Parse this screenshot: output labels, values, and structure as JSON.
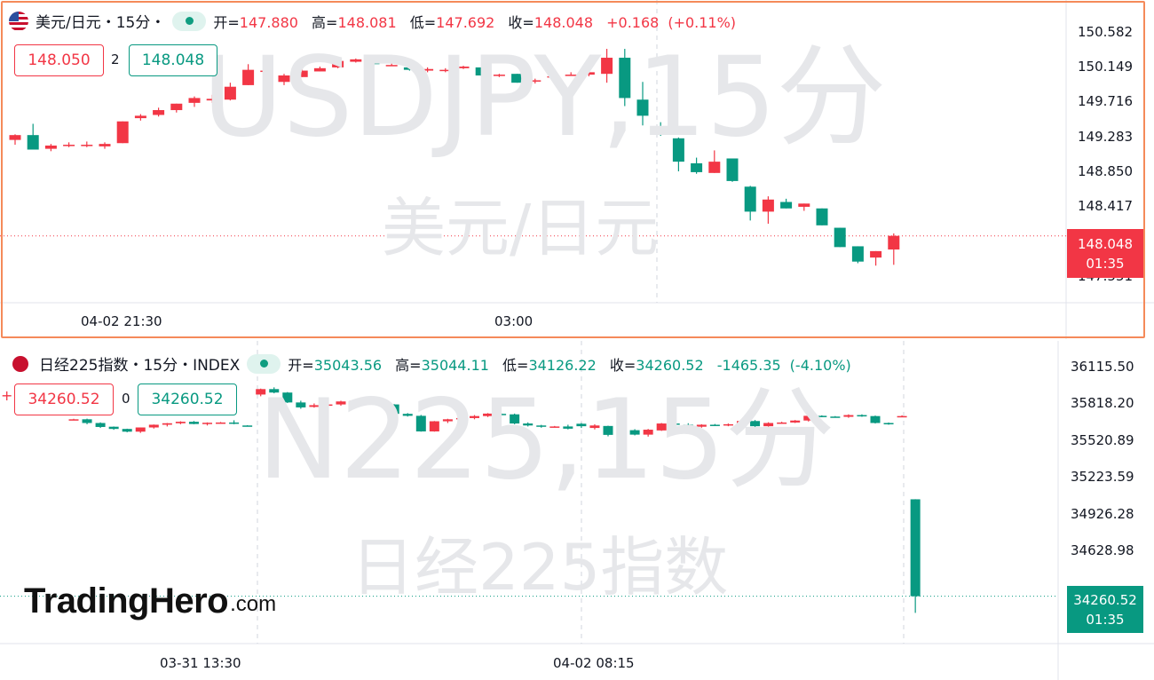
{
  "branding": {
    "logo_main": "TradingHero",
    "logo_suffix": ".com"
  },
  "colors": {
    "up": "#f23645",
    "down": "#089981",
    "frame": "#f58a5a",
    "watermark": "#e6e7ea"
  },
  "charts": [
    {
      "id": "usdjpy",
      "title": "美元/日元・15分・",
      "flag_icon": "us-flag-icon",
      "legend": {
        "open_label": "开=",
        "open": "147.880",
        "high_label": "高=",
        "high": "148.081",
        "low_label": "低=",
        "low": "147.692",
        "close_label": "收=",
        "close": "148.048",
        "change": "+0.168",
        "change_pct": "(+0.11%)"
      },
      "bid": "148.050",
      "spread": "2",
      "ask": "148.048",
      "watermark_main": "USDJPY,15分",
      "watermark_sub": "美元/日元",
      "price_ticks": [
        "150.582",
        "150.149",
        "149.716",
        "149.283",
        "148.850",
        "148.417",
        "147.551"
      ],
      "current_price": "148.048",
      "countdown": "01:35",
      "time_labels": [
        "04-02 21:30",
        "03:00"
      ]
    },
    {
      "id": "n225",
      "title": "日经225指数・15分・INDEX",
      "flag_icon": "japan-flag-icon",
      "legend": {
        "open_label": "开=",
        "open": "35043.56",
        "high_label": "高=",
        "high": "35044.11",
        "low_label": "低=",
        "low": "34126.22",
        "close_label": "收=",
        "close": "34260.52",
        "change": "-1465.35",
        "change_pct": "(-4.10%)"
      },
      "bid": "34260.52",
      "spread": "0",
      "ask": "34260.52",
      "watermark_main": "N225,15分",
      "watermark_sub": "日经225指数",
      "price_ticks": [
        "36115.50",
        "35818.20",
        "35520.89",
        "35223.59",
        "34926.28",
        "34628.98"
      ],
      "current_price": "34260.52",
      "countdown": "01:35",
      "time_labels": [
        "03-31 13:30",
        "04-02 08:15"
      ]
    }
  ],
  "chart_data": [
    {
      "type": "candlestick",
      "title": "USDJPY,15分",
      "ylim": [
        147.44,
        150.69
      ],
      "ticks": [
        150.582,
        150.149,
        149.716,
        149.283,
        148.85,
        148.417,
        147.551
      ],
      "last": 148.048,
      "candles": [
        [
          149.24,
          149.31,
          149.18,
          149.3
        ],
        [
          149.3,
          149.44,
          149.12,
          149.12
        ],
        [
          149.13,
          149.19,
          149.1,
          149.17
        ],
        [
          149.17,
          149.21,
          149.15,
          149.18
        ],
        [
          149.17,
          149.22,
          149.15,
          149.18
        ],
        [
          149.16,
          149.21,
          149.13,
          149.19
        ],
        [
          149.2,
          149.47,
          149.2,
          149.47
        ],
        [
          149.51,
          149.56,
          149.48,
          149.54
        ],
        [
          149.55,
          149.64,
          149.53,
          149.61
        ],
        [
          149.61,
          149.69,
          149.58,
          149.69
        ],
        [
          149.7,
          149.78,
          149.65,
          149.76
        ],
        [
          149.73,
          149.8,
          149.7,
          149.75
        ],
        [
          149.74,
          149.95,
          149.73,
          149.9
        ],
        [
          149.92,
          150.18,
          149.92,
          150.11
        ],
        [
          150.1,
          150.16,
          150.03,
          150.1
        ],
        [
          149.96,
          150.06,
          149.92,
          150.04
        ],
        [
          150.02,
          150.14,
          150.02,
          150.1
        ],
        [
          150.09,
          150.15,
          150.09,
          150.13
        ],
        [
          150.14,
          150.22,
          150.13,
          150.22
        ],
        [
          150.21,
          150.25,
          150.2,
          150.24
        ],
        [
          150.21,
          150.23,
          150.16,
          150.18
        ],
        [
          150.17,
          150.2,
          150.16,
          150.17
        ],
        [
          150.14,
          150.16,
          150.1,
          150.11
        ],
        [
          150.1,
          150.14,
          150.08,
          150.12
        ],
        [
          150.1,
          150.13,
          150.08,
          150.11
        ],
        [
          150.13,
          150.16,
          150.12,
          150.15
        ],
        [
          150.14,
          150.14,
          150.03,
          150.04
        ],
        [
          150.04,
          150.06,
          150.02,
          150.05
        ],
        [
          150.06,
          150.06,
          149.95,
          149.95
        ],
        [
          149.97,
          150.0,
          149.94,
          149.98
        ],
        [
          150.02,
          150.05,
          149.98,
          150.03
        ],
        [
          150.05,
          150.08,
          150.04,
          150.05
        ],
        [
          150.05,
          150.09,
          150.03,
          150.08
        ],
        [
          150.06,
          150.37,
          149.95,
          150.26
        ],
        [
          150.26,
          150.37,
          149.66,
          149.76
        ],
        [
          149.74,
          149.96,
          149.42,
          149.54
        ],
        [
          149.41,
          149.46,
          149.29,
          149.32
        ],
        [
          149.26,
          149.27,
          148.85,
          148.97
        ],
        [
          148.95,
          149.02,
          148.82,
          148.84
        ],
        [
          148.83,
          149.11,
          148.83,
          148.97
        ],
        [
          149.01,
          149.01,
          148.72,
          148.73
        ],
        [
          148.66,
          148.67,
          148.24,
          148.35
        ],
        [
          148.35,
          148.54,
          148.2,
          148.5
        ],
        [
          148.47,
          148.51,
          148.39,
          148.39
        ],
        [
          148.41,
          148.45,
          148.36,
          148.45
        ],
        [
          148.39,
          148.39,
          148.18,
          148.18
        ],
        [
          148.15,
          148.15,
          147.91,
          147.91
        ],
        [
          147.92,
          147.92,
          147.71,
          147.73
        ],
        [
          147.78,
          147.86,
          147.68,
          147.86
        ],
        [
          147.88,
          148.08,
          147.69,
          148.05
        ]
      ]
    },
    {
      "type": "candlestick",
      "title": "N225,15分",
      "ylim": [
        34100,
        36180
      ],
      "ticks": [
        36115.5,
        35818.2,
        35520.89,
        35223.59,
        34926.28,
        34628.98
      ],
      "last": 34260.52,
      "candles": [
        [
          35686,
          35694,
          35682,
          35690
        ],
        [
          35690,
          35695,
          35650,
          35660
        ],
        [
          35660,
          35665,
          35620,
          35628
        ],
        [
          35630,
          35632,
          35605,
          35612
        ],
        [
          35612,
          35614,
          35585,
          35590
        ],
        [
          35590,
          35624,
          35580,
          35624
        ],
        [
          35624,
          35648,
          35615,
          35646
        ],
        [
          35646,
          35660,
          35632,
          35658
        ],
        [
          35658,
          35674,
          35650,
          35670
        ],
        [
          35670,
          35676,
          35650,
          35652
        ],
        [
          35652,
          35665,
          35640,
          35662
        ],
        [
          35662,
          35668,
          35655,
          35664
        ],
        [
          35664,
          35682,
          35650,
          35660
        ],
        [
          35640,
          35642,
          35636,
          35638
        ],
        [
          35890,
          35938,
          35876,
          35934
        ],
        [
          35934,
          35948,
          35900,
          35906
        ],
        [
          35906,
          35910,
          35822,
          35826
        ],
        [
          35826,
          35840,
          35775,
          35786
        ],
        [
          35790,
          35818,
          35784,
          35804
        ],
        [
          35804,
          35825,
          35786,
          35810
        ],
        [
          35810,
          35840,
          35800,
          35834
        ],
        [
          35834,
          35846,
          35826,
          35840
        ],
        [
          35840,
          35845,
          35815,
          35818
        ],
        [
          35818,
          35822,
          35808,
          35810
        ],
        [
          35810,
          35812,
          35730,
          35734
        ],
        [
          35734,
          35740,
          35712,
          35718
        ],
        [
          35718,
          35725,
          35590,
          35592
        ],
        [
          35592,
          35676,
          35590,
          35674
        ],
        [
          35674,
          35694,
          35660,
          35690
        ],
        [
          35690,
          35712,
          35680,
          35700
        ],
        [
          35700,
          35724,
          35690,
          35716
        ],
        [
          35716,
          35740,
          35708,
          35736
        ],
        [
          35734,
          35740,
          35722,
          35730
        ],
        [
          35730,
          35736,
          35650,
          35656
        ],
        [
          35656,
          35665,
          35632,
          35640
        ],
        [
          35640,
          35645,
          35622,
          35630
        ],
        [
          35630,
          35636,
          35625,
          35632
        ],
        [
          35632,
          35646,
          35608,
          35614
        ],
        [
          35654,
          35660,
          35620,
          35634
        ],
        [
          35620,
          35650,
          35608,
          35640
        ],
        [
          35636,
          35638,
          35552,
          35564
        ],
        [
          35564,
          35610,
          35556,
          35602
        ],
        [
          35602,
          35610,
          35560,
          35566
        ],
        [
          35566,
          35612,
          35550,
          35606
        ],
        [
          35600,
          35660,
          35596,
          35656
        ],
        [
          35656,
          35660,
          35636,
          35646
        ],
        [
          35646,
          35658,
          35620,
          35630
        ],
        [
          35630,
          35650,
          35622,
          35646
        ],
        [
          35646,
          35652,
          35638,
          35640
        ],
        [
          35640,
          35656,
          35634,
          35650
        ],
        [
          35650,
          35682,
          35646,
          35676
        ],
        [
          35676,
          35684,
          35626,
          35634
        ],
        [
          35634,
          35666,
          35630,
          35660
        ],
        [
          35660,
          35670,
          35655,
          35664
        ],
        [
          35664,
          35684,
          35660,
          35680
        ],
        [
          35680,
          35720,
          35672,
          35718
        ],
        [
          35718,
          35722,
          35708,
          35714
        ],
        [
          35712,
          35716,
          35704,
          35710
        ],
        [
          35710,
          35730,
          35702,
          35724
        ],
        [
          35724,
          35730,
          35710,
          35716
        ],
        [
          35716,
          35720,
          35656,
          35660
        ],
        [
          35660,
          35664,
          35646,
          35652
        ],
        [
          35716,
          35722,
          35712,
          35716
        ],
        [
          35043.56,
          35044.11,
          34126.22,
          34260.52
        ]
      ]
    }
  ]
}
